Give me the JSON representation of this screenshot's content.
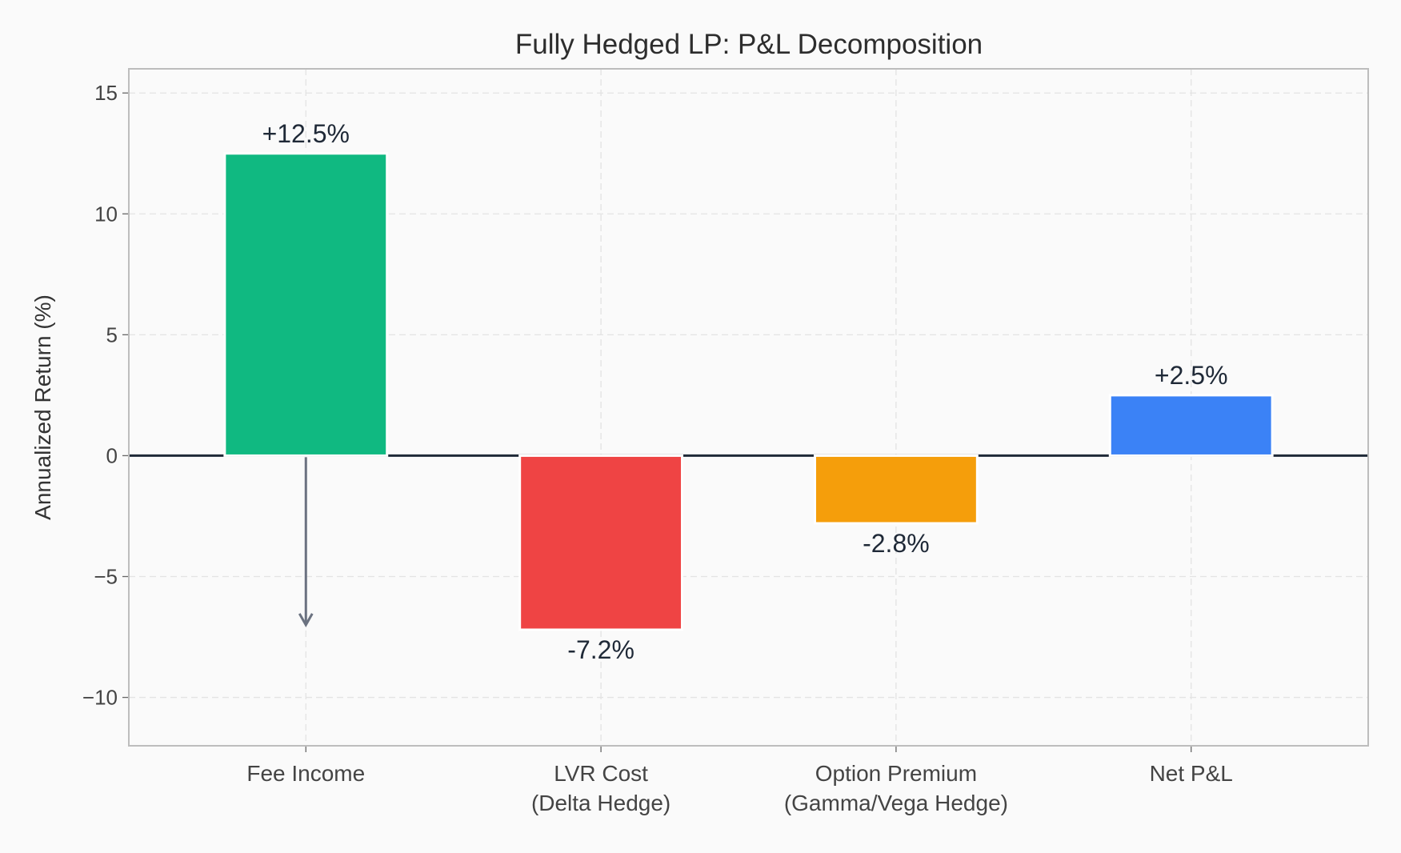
{
  "chart_data": {
    "type": "bar",
    "title": "Fully Hedged LP: P&L Decomposition",
    "xlabel": "",
    "ylabel": "Annualized Return (%)",
    "categories": [
      "Fee Income",
      "LVR Cost\n(Delta Hedge)",
      "Option Premium\n(Gamma/Vega Hedge)",
      "Net P&L"
    ],
    "values": [
      12.5,
      -7.2,
      -2.8,
      2.5
    ],
    "data_labels": [
      "+12.5%",
      "-7.2%",
      "-2.8%",
      "+2.5%"
    ],
    "colors": [
      "#10b981",
      "#ef4444",
      "#f59e0b",
      "#3b82f6"
    ],
    "ylim": [
      -12,
      16
    ],
    "yticks": [
      -10,
      -5,
      0,
      5,
      10,
      15
    ],
    "ytick_labels": [
      "−10",
      "−5",
      "0",
      "5",
      "10",
      "15"
    ],
    "grid": true,
    "zero_line_color": "#1f2937",
    "annotation": {
      "type": "arrow",
      "category": "Fee Income",
      "from": 0,
      "to": -7.0,
      "color": "#6b7280"
    }
  }
}
